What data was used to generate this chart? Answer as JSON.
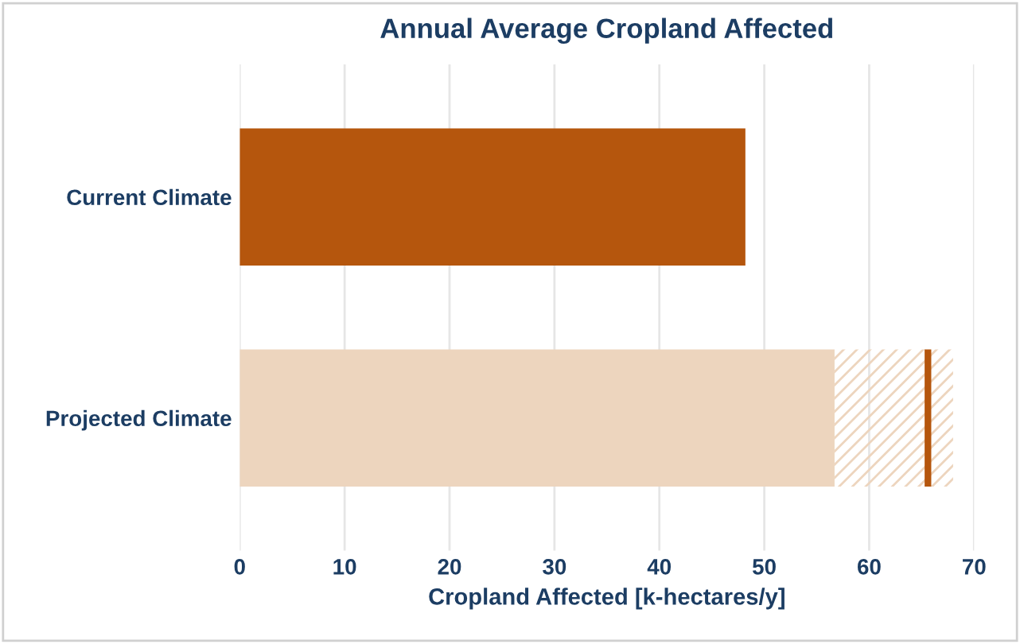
{
  "chart_data": {
    "type": "bar",
    "orientation": "horizontal",
    "stacked": true,
    "title": "Annual Average Cropland Affected",
    "xlabel": "Cropland Affected [k-hectares/y]",
    "categories": [
      "Current Climate",
      "Projected Climate"
    ],
    "series": [
      {
        "colors": [
          "#b5560d",
          "#edd5be"
        ],
        "values": [
          48.2,
          56.7
        ]
      },
      {
        "color": "#edd5be",
        "values": [
          null,
          11.3
        ]
      }
    ],
    "ref_lines": [
      {
        "axis": "x",
        "value": 65.6,
        "color": "#b5560d"
      }
    ],
    "xlim": [
      0,
      70
    ],
    "xticks": [
      0,
      10,
      20,
      30,
      40,
      50,
      60,
      70
    ],
    "grid": "x"
  }
}
